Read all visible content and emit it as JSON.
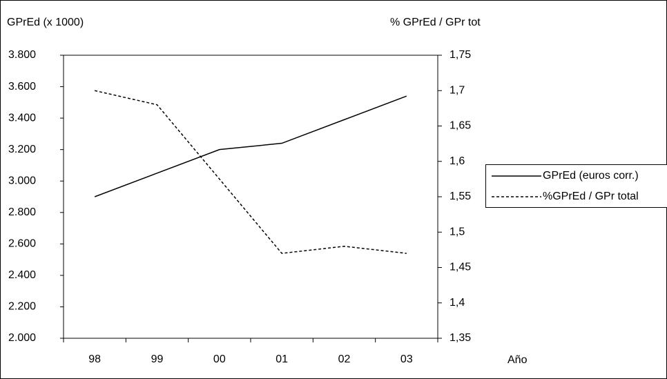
{
  "chart_data": {
    "type": "line",
    "y_label": "GPrEd (x 1000)",
    "y2_label": "% GPrEd / GPr tot",
    "x_label": "Año",
    "categories": [
      "98",
      "99",
      "00",
      "01",
      "02",
      "03"
    ],
    "series": [
      {
        "name": "GPrEd (euros corr.)",
        "color": "#000000",
        "line_style": "solid",
        "values": [
          2900,
          3050,
          3200,
          3240,
          3390,
          3540
        ]
      },
      {
        "name": "%GPrEd / GPr total",
        "color": "#000000",
        "line_style": "dotted",
        "axis": "y2",
        "values": [
          1.7,
          1.68,
          1.575,
          1.47,
          1.48,
          1.47
        ]
      }
    ],
    "ylim": [
      2000,
      3800
    ],
    "yticks": [
      {
        "value": 2000,
        "label": "2.000"
      },
      {
        "value": 2200,
        "label": "2.200"
      },
      {
        "value": 2400,
        "label": "2.400"
      },
      {
        "value": 2600,
        "label": "2.600"
      },
      {
        "value": 2800,
        "label": "2.800"
      },
      {
        "value": 3000,
        "label": "3.000"
      },
      {
        "value": 3200,
        "label": "3.200"
      },
      {
        "value": 3400,
        "label": "3.400"
      },
      {
        "value": 3600,
        "label": "3.600"
      },
      {
        "value": 3800,
        "label": "3.800"
      }
    ],
    "y2lim": [
      1.35,
      1.75
    ],
    "y2ticks": [
      {
        "value": 1.35,
        "label": "1,35"
      },
      {
        "value": 1.4,
        "label": "1,4"
      },
      {
        "value": 1.45,
        "label": "1,45"
      },
      {
        "value": 1.5,
        "label": "1,5"
      },
      {
        "value": 1.55,
        "label": "1,55"
      },
      {
        "value": 1.6,
        "label": "1,6"
      },
      {
        "value": 1.65,
        "label": "1,65"
      },
      {
        "value": 1.7,
        "label": "1,7"
      },
      {
        "value": 1.75,
        "label": "1,75"
      }
    ],
    "grid": false,
    "legend": "right"
  }
}
